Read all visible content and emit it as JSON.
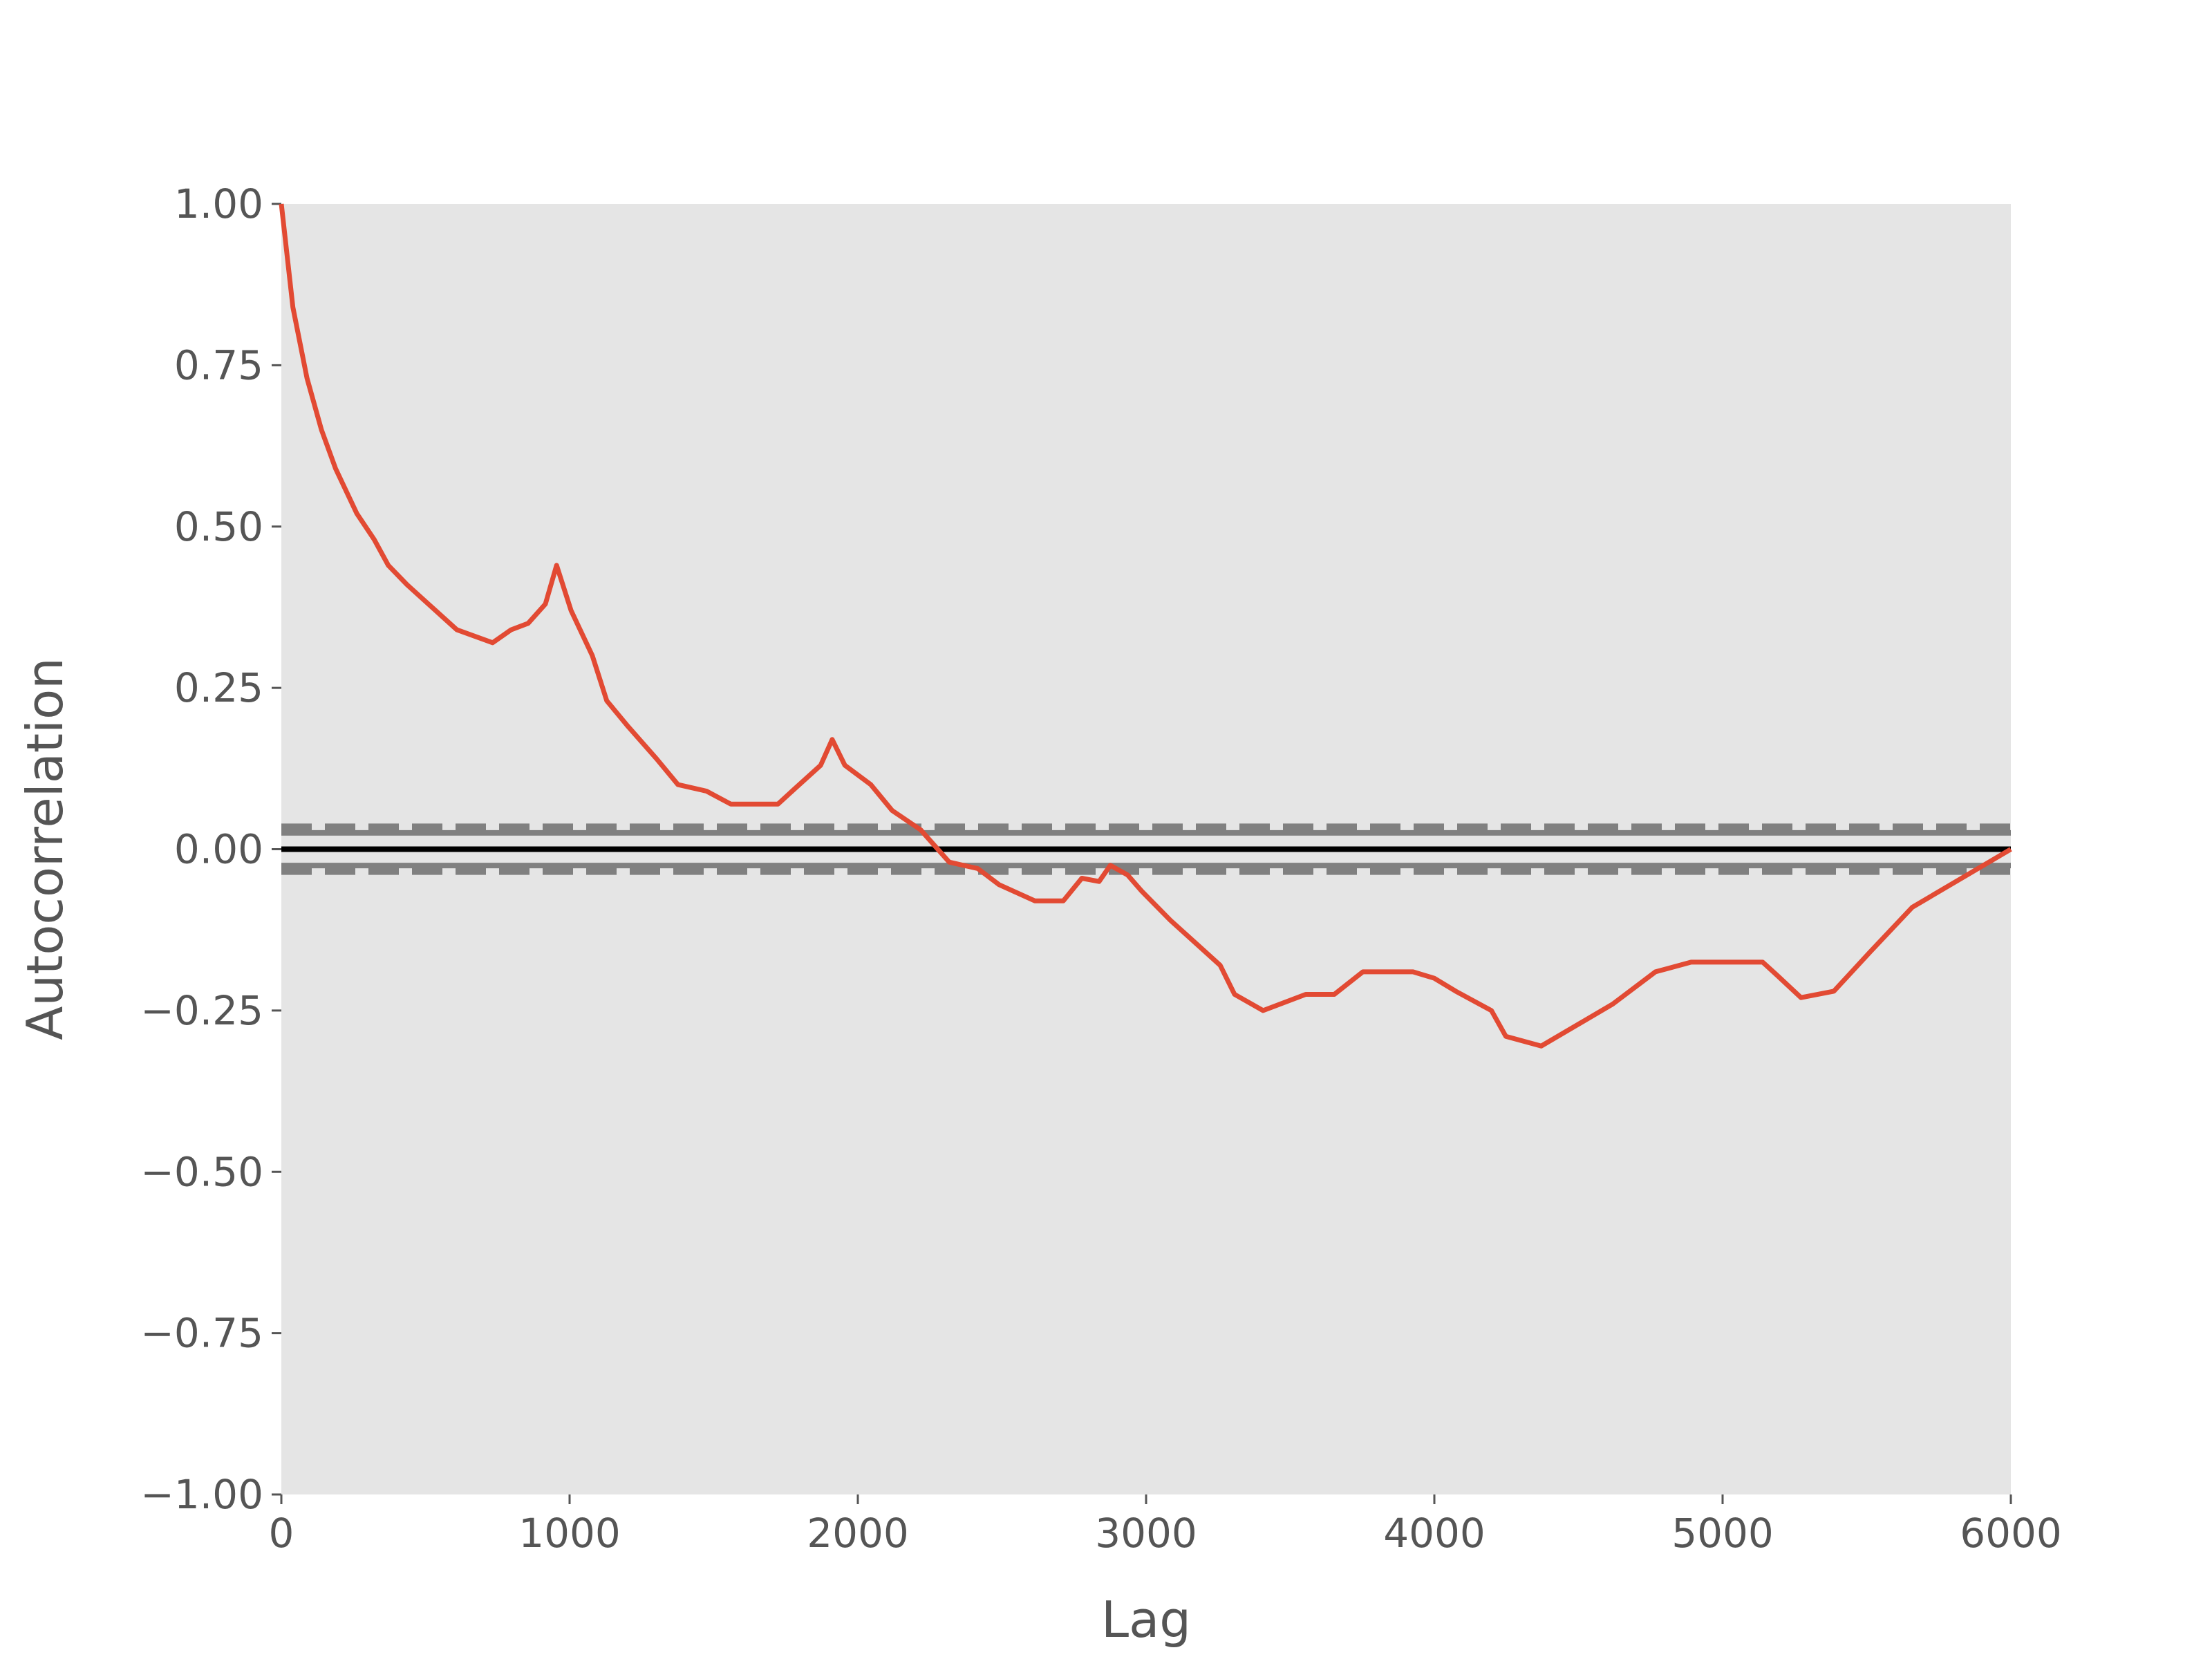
{
  "chart_data": {
    "type": "line",
    "xlabel": "Lag",
    "ylabel": "Autocorrelation",
    "x": [
      0,
      40,
      89,
      139,
      188,
      262,
      322,
      371,
      436,
      510,
      609,
      733,
      797,
      856,
      916,
      955,
      1005,
      1079,
      1129,
      1203,
      1302,
      1376,
      1475,
      1559,
      1624,
      1723,
      1772,
      1871,
      1911,
      1955,
      2045,
      2119,
      2218,
      2317,
      2416,
      2490,
      2614,
      2713,
      2777,
      2837,
      2876,
      2936,
      2985,
      3084,
      3183,
      3257,
      3307,
      3406,
      3554,
      3653,
      3752,
      3926,
      4000,
      4074,
      4198,
      4248,
      4371,
      4619,
      4767,
      4891,
      5139,
      5188,
      5272,
      5386,
      5510,
      5658,
      6000
    ],
    "series": [
      {
        "color": "#e24a33",
        "values": [
          1.0,
          0.84,
          0.73,
          0.65,
          0.59,
          0.52,
          0.48,
          0.44,
          0.41,
          0.38,
          0.34,
          0.32,
          0.34,
          0.35,
          0.38,
          0.44,
          0.37,
          0.3,
          0.23,
          0.19,
          0.14,
          0.1,
          0.09,
          0.07,
          0.07,
          0.07,
          0.09,
          0.13,
          0.17,
          0.13,
          0.1,
          0.06,
          0.03,
          -0.02,
          -0.03,
          -0.055,
          -0.08,
          -0.08,
          -0.045,
          -0.05,
          -0.025,
          -0.04,
          -0.065,
          -0.11,
          -0.15,
          -0.18,
          -0.225,
          -0.25,
          -0.225,
          -0.225,
          -0.19,
          -0.19,
          -0.2,
          -0.22,
          -0.25,
          -0.29,
          -0.305,
          -0.24,
          -0.19,
          -0.175,
          -0.175,
          -0.195,
          -0.23,
          -0.22,
          -0.16,
          -0.09,
          0.0
        ]
      }
    ],
    "reference_lines": [
      {
        "value": 0,
        "color": "#000000",
        "dashed": false
      },
      {
        "value": 0.0253,
        "color": "#808080",
        "dashed": false
      },
      {
        "value": -0.0253,
        "color": "#808080",
        "dashed": false
      },
      {
        "value": 0.0333,
        "color": "#808080",
        "dashed": true
      },
      {
        "value": -0.0333,
        "color": "#808080",
        "dashed": true
      }
    ],
    "xlim": [
      0,
      6000
    ],
    "xticks": [
      0,
      1000,
      2000,
      3000,
      4000,
      5000,
      6000
    ],
    "ylim": [
      -1,
      1
    ],
    "yticks": [
      {
        "value": -1,
        "label": "−1.00"
      },
      {
        "value": -0.75,
        "label": "−0.75"
      },
      {
        "value": -0.5,
        "label": "−0.50"
      },
      {
        "value": -0.25,
        "label": "−0.25"
      },
      {
        "value": 0,
        "label": "0.00"
      },
      {
        "value": 0.25,
        "label": "0.25"
      },
      {
        "value": 0.5,
        "label": "0.50"
      },
      {
        "value": 0.75,
        "label": "0.75"
      },
      {
        "value": 1,
        "label": "1.00"
      }
    ],
    "background": "#e5e5e5",
    "grid": false
  }
}
